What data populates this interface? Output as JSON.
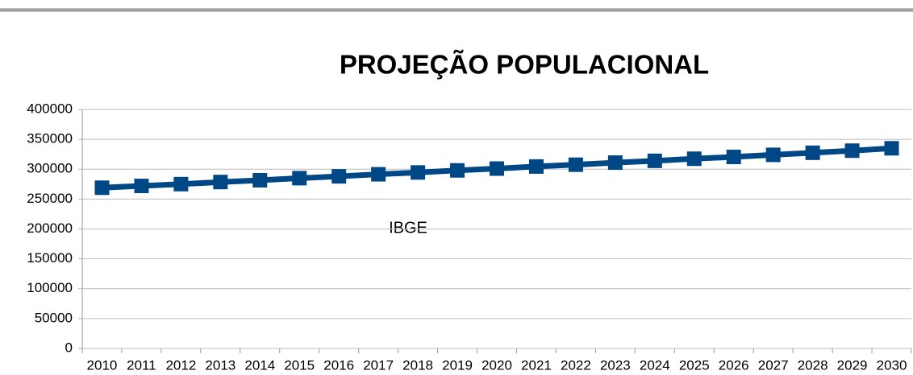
{
  "chart_data": {
    "type": "line",
    "title": "PROJEÇÃO POPULACIONAL",
    "annotation": "IBGE",
    "categories": [
      "2010",
      "2011",
      "2012",
      "2013",
      "2014",
      "2015",
      "2016",
      "2017",
      "2018",
      "2019",
      "2020",
      "2021",
      "2022",
      "2023",
      "2024",
      "2025",
      "2026",
      "2027",
      "2028",
      "2029",
      "2030"
    ],
    "series": [
      {
        "name": "IBGE",
        "color": "#004785",
        "values": [
          269000,
          272000,
          275000,
          278500,
          281500,
          285000,
          288000,
          291500,
          294500,
          298000,
          301000,
          304500,
          307500,
          311000,
          314000,
          317500,
          320500,
          324000,
          327500,
          331000,
          335000
        ]
      }
    ],
    "ylim": [
      0,
      400000
    ],
    "yticks": [
      0,
      50000,
      100000,
      150000,
      200000,
      250000,
      300000,
      350000,
      400000
    ],
    "grid": true
  }
}
